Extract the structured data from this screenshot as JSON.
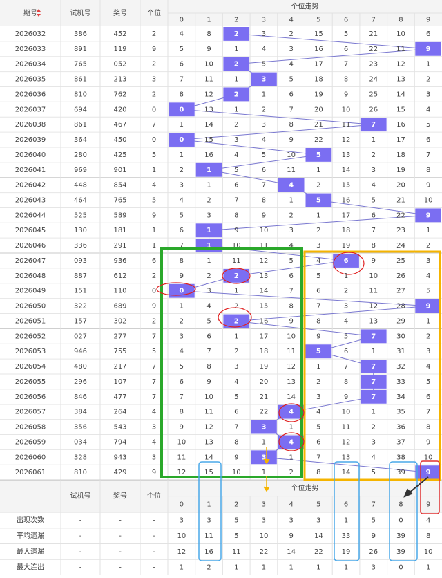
{
  "header": {
    "columns": [
      "期号",
      "试机号",
      "奖号",
      "个位"
    ],
    "trend_title": "个位走势",
    "digits": [
      "0",
      "1",
      "2",
      "3",
      "4",
      "5",
      "6",
      "7",
      "8",
      "9"
    ]
  },
  "rows": [
    {
      "period": "2026032",
      "test": "386",
      "prize": "452",
      "unit": "2",
      "trend": [
        4,
        8,
        2,
        3,
        2,
        15,
        5,
        21,
        10,
        6
      ]
    },
    {
      "period": "2026033",
      "test": "891",
      "prize": "119",
      "unit": "9",
      "trend": [
        5,
        9,
        1,
        4,
        3,
        16,
        6,
        22,
        11,
        9
      ]
    },
    {
      "period": "2026034",
      "test": "765",
      "prize": "052",
      "unit": "2",
      "trend": [
        6,
        10,
        2,
        5,
        4,
        17,
        7,
        23,
        12,
        1
      ]
    },
    {
      "period": "2026035",
      "test": "861",
      "prize": "213",
      "unit": "3",
      "trend": [
        7,
        11,
        1,
        3,
        5,
        18,
        8,
        24,
        13,
        2
      ]
    },
    {
      "period": "2026036",
      "test": "810",
      "prize": "762",
      "unit": "2",
      "trend": [
        8,
        12,
        2,
        1,
        6,
        19,
        9,
        25,
        14,
        3
      ]
    },
    {
      "period": "2026037",
      "test": "694",
      "prize": "420",
      "unit": "0",
      "trend": [
        0,
        13,
        1,
        2,
        7,
        20,
        10,
        26,
        15,
        4
      ]
    },
    {
      "period": "2026038",
      "test": "861",
      "prize": "467",
      "unit": "7",
      "trend": [
        1,
        14,
        2,
        3,
        8,
        21,
        11,
        7,
        16,
        5
      ]
    },
    {
      "period": "2026039",
      "test": "364",
      "prize": "450",
      "unit": "0",
      "trend": [
        0,
        15,
        3,
        4,
        9,
        22,
        12,
        1,
        17,
        6
      ]
    },
    {
      "period": "2026040",
      "test": "280",
      "prize": "425",
      "unit": "5",
      "trend": [
        1,
        16,
        4,
        5,
        10,
        5,
        13,
        2,
        18,
        7
      ]
    },
    {
      "period": "2026041",
      "test": "969",
      "prize": "901",
      "unit": "1",
      "trend": [
        2,
        1,
        5,
        6,
        11,
        1,
        14,
        3,
        19,
        8
      ]
    },
    {
      "period": "2026042",
      "test": "448",
      "prize": "854",
      "unit": "4",
      "trend": [
        3,
        1,
        6,
        7,
        4,
        2,
        15,
        4,
        20,
        9
      ]
    },
    {
      "period": "2026043",
      "test": "464",
      "prize": "765",
      "unit": "5",
      "trend": [
        4,
        2,
        7,
        8,
        1,
        5,
        16,
        5,
        21,
        10
      ]
    },
    {
      "period": "2026044",
      "test": "525",
      "prize": "589",
      "unit": "9",
      "trend": [
        5,
        3,
        8,
        9,
        2,
        1,
        17,
        6,
        22,
        9
      ]
    },
    {
      "period": "2026045",
      "test": "130",
      "prize": "181",
      "unit": "1",
      "trend": [
        6,
        1,
        9,
        10,
        3,
        2,
        18,
        7,
        23,
        1
      ]
    },
    {
      "period": "2026046",
      "test": "336",
      "prize": "291",
      "unit": "1",
      "trend": [
        7,
        1,
        10,
        11,
        4,
        3,
        19,
        8,
        24,
        2
      ]
    },
    {
      "period": "2026047",
      "test": "093",
      "prize": "936",
      "unit": "6",
      "trend": [
        8,
        1,
        11,
        12,
        5,
        4,
        6,
        9,
        25,
        3
      ]
    },
    {
      "period": "2026048",
      "test": "887",
      "prize": "612",
      "unit": "2",
      "trend": [
        9,
        2,
        2,
        13,
        6,
        5,
        1,
        10,
        26,
        4
      ]
    },
    {
      "period": "2026049",
      "test": "151",
      "prize": "110",
      "unit": "0",
      "trend": [
        0,
        3,
        1,
        14,
        7,
        6,
        2,
        11,
        27,
        5
      ]
    },
    {
      "period": "2026050",
      "test": "322",
      "prize": "689",
      "unit": "9",
      "trend": [
        1,
        4,
        2,
        15,
        8,
        7,
        3,
        12,
        28,
        9
      ]
    },
    {
      "period": "2026051",
      "test": "157",
      "prize": "302",
      "unit": "2",
      "trend": [
        2,
        5,
        2,
        16,
        9,
        8,
        4,
        13,
        29,
        1
      ]
    },
    {
      "period": "2026052",
      "test": "027",
      "prize": "277",
      "unit": "7",
      "trend": [
        3,
        6,
        1,
        17,
        10,
        9,
        5,
        7,
        30,
        2
      ]
    },
    {
      "period": "2026053",
      "test": "946",
      "prize": "755",
      "unit": "5",
      "trend": [
        4,
        7,
        2,
        18,
        11,
        5,
        6,
        1,
        31,
        3
      ]
    },
    {
      "period": "2026054",
      "test": "480",
      "prize": "217",
      "unit": "7",
      "trend": [
        5,
        8,
        3,
        19,
        12,
        1,
        7,
        7,
        32,
        4
      ]
    },
    {
      "period": "2026055",
      "test": "296",
      "prize": "107",
      "unit": "7",
      "trend": [
        6,
        9,
        4,
        20,
        13,
        2,
        8,
        7,
        33,
        5
      ]
    },
    {
      "period": "2026056",
      "test": "846",
      "prize": "477",
      "unit": "7",
      "trend": [
        7,
        10,
        5,
        21,
        14,
        3,
        9,
        7,
        34,
        6
      ]
    },
    {
      "period": "2026057",
      "test": "384",
      "prize": "264",
      "unit": "4",
      "trend": [
        8,
        11,
        6,
        22,
        4,
        4,
        10,
        1,
        35,
        7
      ]
    },
    {
      "period": "2026058",
      "test": "356",
      "prize": "543",
      "unit": "3",
      "trend": [
        9,
        12,
        7,
        3,
        1,
        5,
        11,
        2,
        36,
        8
      ]
    },
    {
      "period": "2026059",
      "test": "034",
      "prize": "794",
      "unit": "4",
      "trend": [
        10,
        13,
        8,
        1,
        4,
        6,
        12,
        3,
        37,
        9
      ]
    },
    {
      "period": "2026060",
      "test": "328",
      "prize": "943",
      "unit": "3",
      "trend": [
        11,
        14,
        9,
        3,
        1,
        7,
        13,
        4,
        38,
        10
      ]
    },
    {
      "period": "2026061",
      "test": "810",
      "prize": "429",
      "unit": "9",
      "trend": [
        12,
        15,
        10,
        1,
        2,
        8,
        14,
        5,
        39,
        9
      ]
    }
  ],
  "footer": {
    "placeholder": "-"
  },
  "stats": [
    {
      "label": "出现次数",
      "cells": [
        "-",
        "-",
        "-"
      ],
      "values": [
        3,
        3,
        5,
        3,
        3,
        3,
        1,
        5,
        0,
        4
      ]
    },
    {
      "label": "平均遗漏",
      "cells": [
        "-",
        "-",
        "-"
      ],
      "values": [
        10,
        11,
        5,
        10,
        9,
        14,
        33,
        9,
        39,
        8
      ]
    },
    {
      "label": "最大遗漏",
      "cells": [
        "-",
        "-",
        "-"
      ],
      "values": [
        12,
        16,
        11,
        22,
        14,
        22,
        19,
        26,
        39,
        10
      ]
    },
    {
      "label": "最大连出",
      "cells": [
        "-",
        "-",
        "-"
      ],
      "values": [
        1,
        2,
        1,
        1,
        1,
        1,
        1,
        3,
        0,
        1
      ]
    }
  ]
}
